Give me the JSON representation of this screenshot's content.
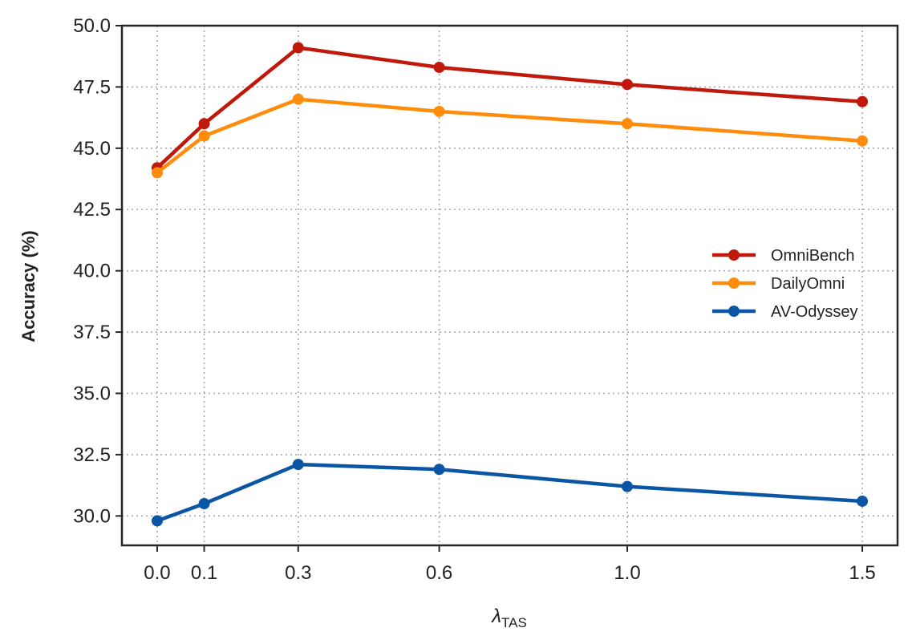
{
  "chart_data": {
    "type": "line",
    "title": "",
    "xlabel": "λ",
    "xlabel_subscript": "TAS",
    "ylabel": "Accuracy (%)",
    "x": [
      0.0,
      0.1,
      0.3,
      0.6,
      1.0,
      1.5
    ],
    "x_tick_labels": [
      "0.0",
      "0.1",
      "0.3",
      "0.6",
      "1.0",
      "1.5"
    ],
    "xlim": [
      -0.075,
      1.575
    ],
    "ylim": [
      28.8,
      50.0
    ],
    "y_ticks": [
      30.0,
      32.5,
      35.0,
      37.5,
      40.0,
      42.5,
      45.0,
      47.5,
      50.0
    ],
    "y_tick_labels": [
      "30.0",
      "32.5",
      "35.0",
      "37.5",
      "40.0",
      "42.5",
      "45.0",
      "47.5",
      "50.0"
    ],
    "grid": true,
    "legend_position": "center-right",
    "series": [
      {
        "name": "OmniBench",
        "color": "#c0190b",
        "values": [
          44.2,
          46.0,
          49.1,
          48.3,
          47.6,
          46.9
        ]
      },
      {
        "name": "DailyOmni",
        "color": "#ff8c0a",
        "values": [
          44.0,
          45.5,
          47.0,
          46.5,
          46.0,
          45.3
        ]
      },
      {
        "name": "AV-Odyssey",
        "color": "#0b55a5",
        "values": [
          29.8,
          30.5,
          32.1,
          31.9,
          31.2,
          30.6
        ]
      }
    ]
  }
}
